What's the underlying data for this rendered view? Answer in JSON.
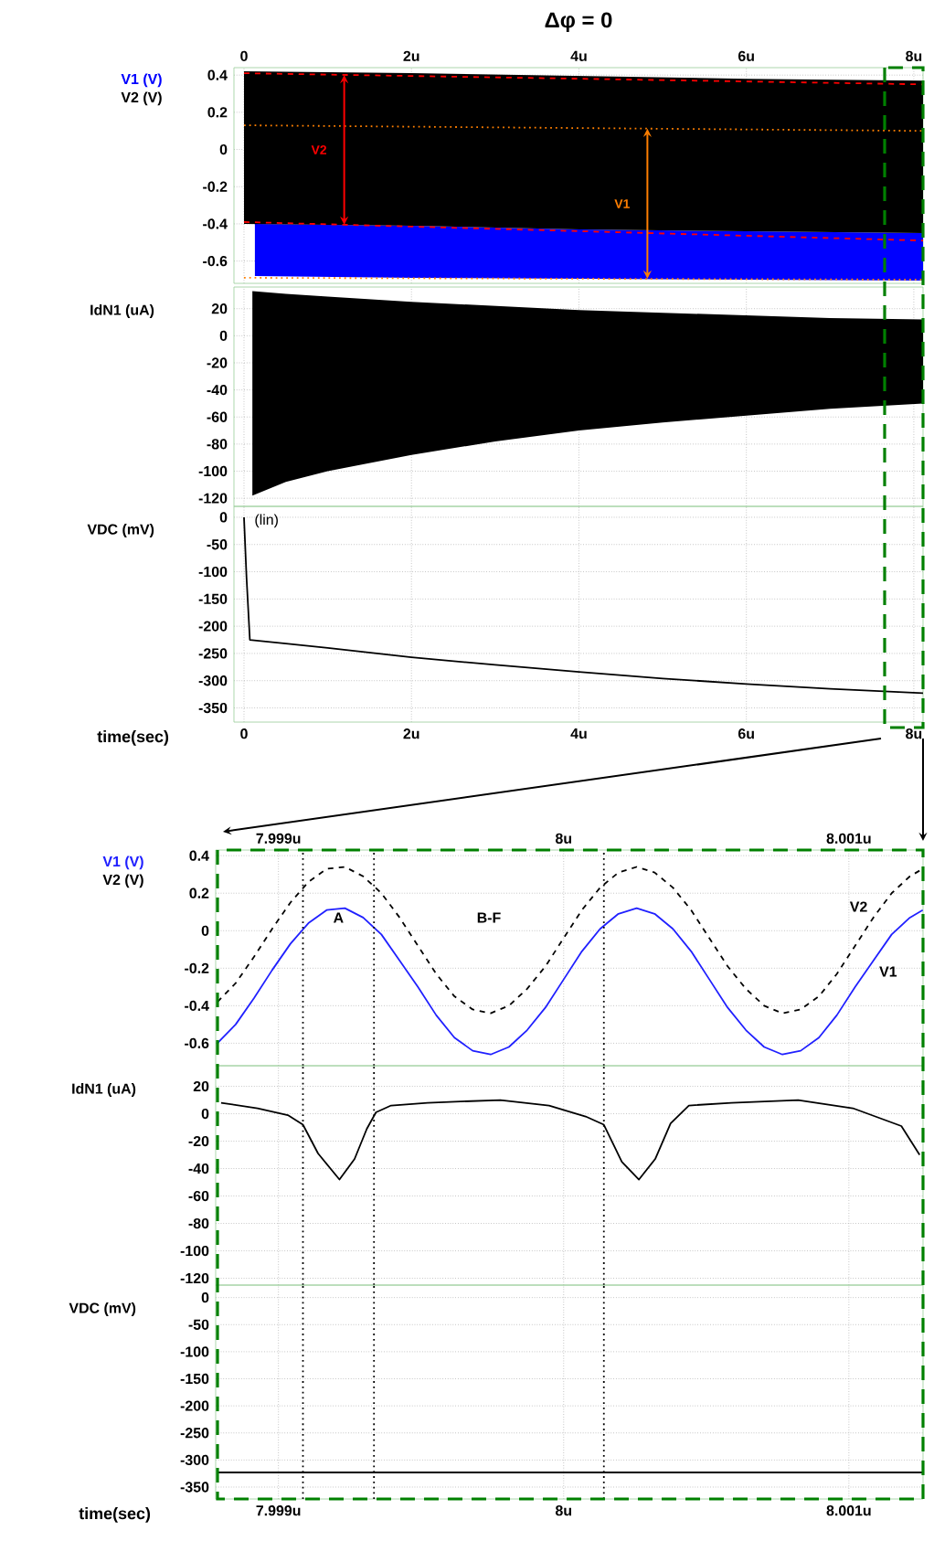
{
  "chart_data": [
    {
      "type": "line",
      "title": "Δφ = 0",
      "xlim": [
        -0.12,
        8.11
      ],
      "xticks": [
        0,
        {
          "value": 2,
          "label": "2u"
        },
        {
          "value": 4,
          "label": "4u"
        },
        {
          "value": 6,
          "label": "6u"
        },
        {
          "value": 8,
          "label": "8u"
        }
      ],
      "ylim": [
        -0.72,
        0.44
      ],
      "yticks": [
        -0.6,
        -0.4,
        -0.2,
        0,
        0.2,
        0.4
      ],
      "grid": true,
      "series": [
        {
          "name": "V1 (V)",
          "color": "#0000ff",
          "x": [
            0.13,
            2,
            4,
            6,
            8.11
          ],
          "values": [
            null,
            null,
            null,
            null,
            null
          ],
          "lower": [
            -0.68,
            -0.69,
            -0.695,
            -0.7,
            -0.705
          ],
          "upper": [
            -0.4,
            -0.41,
            -0.43,
            -0.44,
            -0.45
          ]
        },
        {
          "name": "V2 (V)",
          "color": "#000000",
          "x": [
            0,
            2,
            4,
            6,
            8.11
          ],
          "values": [
            null,
            null,
            null,
            null,
            null
          ],
          "lower": [
            -0.4,
            -0.41,
            -0.43,
            -0.44,
            -0.45
          ],
          "upper": [
            0.42,
            0.41,
            0.395,
            0.38,
            0.37
          ]
        },
        {
          "color": "#ff0000",
          "line_style": "dashed",
          "x": [
            0,
            8.11
          ],
          "values": [
            0.41,
            0.35
          ]
        },
        {
          "color": "#ff0000",
          "line_style": "dashed",
          "x": [
            0,
            8.11
          ],
          "values": [
            -0.39,
            -0.49
          ]
        },
        {
          "color": "#ff7f00",
          "line_style": "dotted",
          "x": [
            0,
            8.11
          ],
          "values": [
            0.13,
            0.1
          ]
        },
        {
          "color": "#ff7f00",
          "line_style": "dotted",
          "x": [
            0,
            8.11
          ],
          "values": [
            -0.69,
            -0.7
          ]
        }
      ],
      "annotations": [
        "V2",
        "V1"
      ]
    },
    {
      "type": "line",
      "ylabel": "IdN1 (uA)",
      "xlim": [
        -0.12,
        8.11
      ],
      "xticks": [
        {
          "value": 0,
          "label": null
        },
        {
          "value": 2,
          "label": null
        },
        {
          "value": 4,
          "label": null
        },
        {
          "value": 6,
          "label": null
        },
        {
          "value": 8,
          "label": null
        }
      ],
      "tick_labels": "y",
      "ylim": [
        -126,
        36
      ],
      "yticks": [
        -120,
        -100,
        -80,
        -60,
        -40,
        -20,
        0,
        20
      ],
      "grid": true,
      "series": [
        {
          "color": "#000000",
          "x": [
            0.1,
            0.5,
            1,
            2,
            3,
            4,
            5,
            6,
            7,
            8.11
          ],
          "values": [
            null,
            null,
            null,
            null,
            null,
            null,
            null,
            null,
            null,
            null
          ],
          "lower": [
            -118,
            -108,
            -100,
            -88,
            -78,
            -70,
            -64,
            -59,
            -54,
            -50
          ],
          "upper": [
            33,
            31,
            29,
            25,
            22,
            19,
            17,
            15,
            13,
            12
          ]
        }
      ]
    },
    {
      "type": "line",
      "ylabel": "VDC (mV)",
      "xlabel": "time(sec)",
      "xlim": [
        -0.12,
        8.11
      ],
      "xticks": [
        0,
        {
          "value": 2,
          "label": "2u"
        },
        {
          "value": 4,
          "label": "4u"
        },
        {
          "value": 6,
          "label": "6u"
        },
        {
          "value": 8,
          "label": "8u"
        }
      ],
      "ylim": [
        -376,
        20
      ],
      "yticks": [
        -350,
        -300,
        -250,
        -200,
        -150,
        -100,
        -50,
        0
      ],
      "grid": true,
      "series": [
        {
          "color": "#000000",
          "x": [
            0,
            0.03,
            0.07,
            0.5,
            1,
            2,
            3,
            4,
            5,
            6,
            7,
            8.11
          ],
          "values": [
            0,
            -110,
            -225,
            -232,
            -240,
            -257,
            -271,
            -284,
            -296,
            -306,
            -315,
            -323
          ]
        }
      ],
      "annotations": [
        "(lin)"
      ]
    },
    {
      "type": "line",
      "xlim": [
        7.99878,
        8.00126
      ],
      "xticks": [
        {
          "value": 7.999,
          "label": "7.999u"
        },
        {
          "value": 8,
          "label": "8u"
        },
        {
          "value": 8.001,
          "label": "8.001u"
        }
      ],
      "ylim": [
        -0.72,
        0.43
      ],
      "yticks": [
        -0.6,
        -0.4,
        -0.2,
        0,
        0.2,
        0.4
      ],
      "grid": true,
      "x": [
        7.998786,
        7.99885,
        7.998914,
        7.998978,
        7.999042,
        7.999105,
        7.999169,
        7.999233,
        7.999297,
        7.999361,
        7.999425,
        7.999489,
        7.999553,
        7.999617,
        7.999681,
        7.999744,
        7.999808,
        7.999872,
        7.999936,
        8.0,
        8.000064,
        8.000128,
        8.000192,
        8.000256,
        8.000319,
        8.000383,
        8.000447,
        8.000511,
        8.000575,
        8.000639,
        8.000703,
        8.000767,
        8.000831,
        8.000895,
        8.000958,
        8.001022,
        8.001086,
        8.00115,
        8.001214,
        8.001259
      ],
      "series": [
        {
          "name": "V1 (V)",
          "color": "#2020ff",
          "values": [
            -0.6,
            -0.5,
            -0.36,
            -0.21,
            -0.07,
            0.04,
            0.11,
            0.12,
            0.07,
            -0.02,
            -0.16,
            -0.3,
            -0.45,
            -0.57,
            -0.64,
            -0.66,
            -0.62,
            -0.53,
            -0.41,
            -0.26,
            -0.11,
            0.01,
            0.09,
            0.12,
            0.09,
            0.01,
            -0.11,
            -0.26,
            -0.41,
            -0.53,
            -0.62,
            -0.66,
            -0.64,
            -0.57,
            -0.45,
            -0.3,
            -0.16,
            -0.02,
            0.07,
            0.11
          ]
        },
        {
          "name": "V2 (V)",
          "color": "#000000",
          "line_style": "dashed",
          "values": [
            -0.38,
            -0.28,
            -0.14,
            0.01,
            0.15,
            0.26,
            0.33,
            0.34,
            0.29,
            0.2,
            0.07,
            -0.08,
            -0.23,
            -0.35,
            -0.42,
            -0.44,
            -0.4,
            -0.31,
            -0.19,
            -0.04,
            0.11,
            0.23,
            0.31,
            0.34,
            0.31,
            0.23,
            0.11,
            -0.04,
            -0.19,
            -0.31,
            -0.4,
            -0.44,
            -0.42,
            -0.35,
            -0.23,
            -0.08,
            0.07,
            0.2,
            0.29,
            0.33
          ]
        }
      ],
      "ref_lines": [
        {
          "axis": "x",
          "value": 7.999086,
          "color": "#000000",
          "line_style": "dotted"
        },
        {
          "axis": "x",
          "value": 7.999335,
          "color": "#000000",
          "line_style": "dotted"
        },
        {
          "axis": "x",
          "value": 8.000141,
          "color": "#000000",
          "line_style": "dotted"
        }
      ],
      "annotations": [
        "A",
        "B-F",
        "V2",
        "V1"
      ]
    },
    {
      "type": "line",
      "ylabel": "IdN1 (uA)",
      "xlim": [
        7.99878,
        8.00126
      ],
      "xticks": [
        {
          "value": 7.999,
          "label": null
        },
        {
          "value": 8,
          "label": null
        },
        {
          "value": 8.001,
          "label": null
        }
      ],
      "tick_labels": "y",
      "ylim": [
        -125,
        35
      ],
      "yticks": [
        -120,
        -100,
        -80,
        -60,
        -40,
        -20,
        0,
        20
      ],
      "grid": true,
      "series": [
        {
          "color": "#000000",
          "x": [
            7.998799,
            7.998927,
            7.999033,
            7.999086,
            7.999139,
            7.999214,
            7.999267,
            7.99931,
            7.999342,
            7.999395,
            7.999523,
            7.999778,
            7.999949,
            8.000077,
            8.000141,
            8.000204,
            8.000264,
            8.000321,
            8.000375,
            8.000439,
            8.000588,
            8.000822,
            8.001014,
            8.001184,
            8.001248
          ],
          "values": [
            8,
            4,
            -1,
            -8,
            -29,
            -48,
            -33,
            -11,
            1,
            6,
            8,
            10,
            6,
            -2,
            -8,
            -35,
            -48,
            -33,
            -7,
            6,
            8,
            10,
            4,
            -9,
            -30
          ]
        }
      ],
      "ref_lines": [
        {
          "axis": "x",
          "value": 7.999086,
          "color": "#000000",
          "line_style": "dotted"
        },
        {
          "axis": "x",
          "value": 7.999335,
          "color": "#000000",
          "line_style": "dotted"
        },
        {
          "axis": "x",
          "value": 8.000141,
          "color": "#000000",
          "line_style": "dotted"
        }
      ]
    },
    {
      "type": "line",
      "ylabel": "VDC (mV)",
      "xlabel": "time(sec)",
      "xlim": [
        7.99878,
        8.00126
      ],
      "xticks": [
        {
          "value": 7.999,
          "label": "7.999u"
        },
        {
          "value": 8,
          "label": "8u"
        },
        {
          "value": 8.001,
          "label": "8.001u"
        }
      ],
      "ylim": [
        -372,
        23
      ],
      "yticks": [
        -350,
        -300,
        -250,
        -200,
        -150,
        -100,
        -50,
        0
      ],
      "grid": true,
      "series": [
        {
          "color": "#000000",
          "x": [
            7.998786,
            8.0,
            8.001259
          ],
          "values": [
            -323,
            -323,
            -323
          ]
        }
      ],
      "ref_lines": [
        {
          "axis": "x",
          "value": 7.999086,
          "color": "#000000",
          "line_style": "dotted"
        },
        {
          "axis": "x",
          "value": 7.999335,
          "color": "#000000",
          "line_style": "dotted"
        },
        {
          "axis": "x",
          "value": 8.000141,
          "color": "#000000",
          "line_style": "dotted"
        }
      ]
    }
  ]
}
